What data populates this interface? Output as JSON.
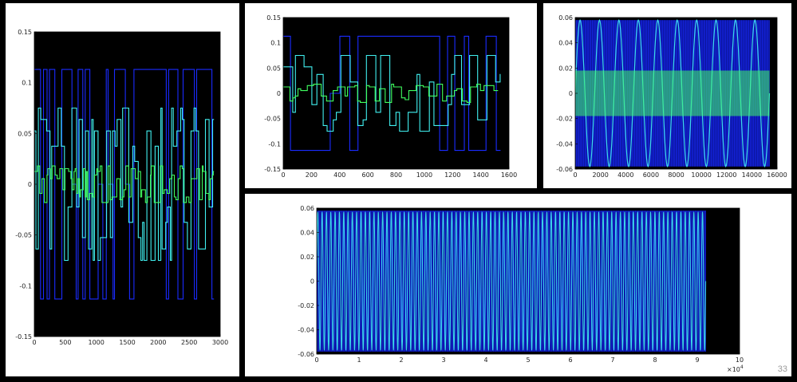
{
  "slide": {
    "page_number": "33"
  },
  "colors": {
    "background": "#000000",
    "blue": "#1a2bff",
    "cyan": "#40f0f0",
    "green": "#40ff60",
    "navy": "#0a1290"
  },
  "chart_data": [
    {
      "id": "left",
      "type": "line",
      "title": "",
      "xlabel": "",
      "ylabel": "",
      "xlim": [
        0,
        3000
      ],
      "ylim": [
        -0.15,
        0.15
      ],
      "xticks": [
        "0",
        "500",
        "1000",
        "1500",
        "2000",
        "2500",
        "3000"
      ],
      "yticks": [
        "-0.15",
        "-0.1",
        "-0.05",
        "0",
        "0.05",
        "0.1",
        "0.15"
      ],
      "xtick_values": [
        0,
        500,
        1000,
        1500,
        2000,
        2500,
        3000
      ],
      "ytick_values": [
        -0.15,
        -0.1,
        -0.05,
        0,
        0.05,
        0.1,
        0.15
      ],
      "series": [
        {
          "color": "blue",
          "style": "square",
          "amplitude": 0.113,
          "x_end": 2900,
          "segments": 54
        },
        {
          "color": "cyan",
          "style": "random-step",
          "amplitude": 0.075,
          "x_end": 2900,
          "segments": 70
        },
        {
          "color": "green",
          "style": "random-step",
          "amplitude": 0.018,
          "x_end": 2900,
          "segments": 90
        }
      ],
      "grid": false
    },
    {
      "id": "top-middle",
      "type": "line",
      "title": "",
      "xlabel": "",
      "ylabel": "",
      "xlim": [
        0,
        1600
      ],
      "ylim": [
        -0.15,
        0.15
      ],
      "xticks": [
        "0",
        "200",
        "400",
        "600",
        "800",
        "1000",
        "1200",
        "1400",
        "1600"
      ],
      "yticks": [
        "-0.15",
        "-0.1",
        "-0.05",
        "0",
        "0.05",
        "0.1",
        "0.15"
      ],
      "xtick_values": [
        0,
        200,
        400,
        600,
        800,
        1000,
        1200,
        1400,
        1600
      ],
      "ytick_values": [
        -0.15,
        -0.1,
        -0.05,
        0,
        0.05,
        0.1,
        0.15
      ],
      "series": [
        {
          "color": "blue",
          "style": "square",
          "amplitude": 0.113,
          "x_end": 1540,
          "segments": 26
        },
        {
          "color": "cyan",
          "style": "random-step",
          "amplitude": 0.075,
          "x_end": 1540,
          "segments": 36
        },
        {
          "color": "green",
          "style": "random-step",
          "amplitude": 0.018,
          "x_end": 1540,
          "segments": 44
        }
      ],
      "grid": false
    },
    {
      "id": "top-right",
      "type": "line",
      "title": "",
      "xlabel": "",
      "ylabel": "",
      "xlim": [
        0,
        16000
      ],
      "ylim": [
        -0.06,
        0.06
      ],
      "xticks": [
        "0",
        "2000",
        "4000",
        "6000",
        "8000",
        "10000",
        "12000",
        "14000",
        "16000"
      ],
      "yticks": [
        "-0.06",
        "-0.04",
        "-0.02",
        "0",
        "0.02",
        "0.04",
        "0.06"
      ],
      "xtick_values": [
        0,
        2000,
        4000,
        6000,
        8000,
        10000,
        12000,
        14000,
        16000
      ],
      "ytick_values": [
        -0.06,
        -0.04,
        -0.02,
        0,
        0.02,
        0.04,
        0.06
      ],
      "series": [
        {
          "color": "blue",
          "style": "dense-fill",
          "amplitude": 0.058,
          "x_end": 15400
        },
        {
          "color": "cyan",
          "style": "sine",
          "amplitude": 0.058,
          "x_end": 15400,
          "cycles": 10
        },
        {
          "color": "green",
          "style": "band",
          "amplitude": 0.018,
          "x_end": 15400
        }
      ],
      "grid": false
    },
    {
      "id": "bottom",
      "type": "line",
      "title": "",
      "xlabel": "",
      "ylabel": "",
      "xlim": [
        0,
        100000
      ],
      "ylim": [
        -0.06,
        0.06
      ],
      "xticks": [
        "0",
        "1",
        "2",
        "3",
        "4",
        "5",
        "6",
        "7",
        "8",
        "9",
        "10"
      ],
      "x_multiplier_label": "×10",
      "x_multiplier_exponent": "4",
      "yticks": [
        "-0.06",
        "-0.04",
        "-0.02",
        "0",
        "0.02",
        "0.04",
        "0.06"
      ],
      "xtick_values": [
        0,
        10000,
        20000,
        30000,
        40000,
        50000,
        60000,
        70000,
        80000,
        90000,
        100000
      ],
      "ytick_values": [
        -0.06,
        -0.04,
        -0.02,
        0,
        0.02,
        0.04,
        0.06
      ],
      "series": [
        {
          "color": "blue",
          "style": "dense-fill",
          "amplitude": 0.058,
          "x_end": 92000
        },
        {
          "color": "cyan",
          "style": "sine",
          "amplitude": 0.057,
          "x_end": 92000,
          "cycles": 90
        }
      ],
      "grid": false
    }
  ]
}
